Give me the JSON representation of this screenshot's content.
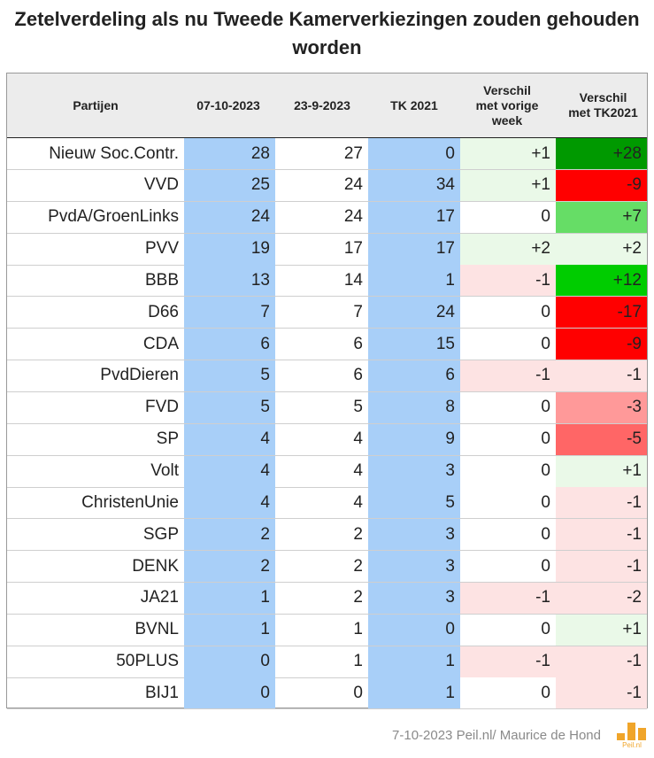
{
  "title": "Zetelverdeling als nu Tweede Kamerverkiezingen zouden gehouden worden",
  "footer": "7-10-2023 Peil.nl/ Maurice de Hond",
  "logo_text": "Peil.nl",
  "colors": {
    "blue_column": "#a8cff8",
    "header_bg": "#ececec",
    "pos_light": "#eaf9e8",
    "neg_light": "#fde3e3",
    "pos_medium": "#66dd66",
    "pos_strong": "#00cc00",
    "pos_dark": "#009900",
    "neg_medium": "#ff9999",
    "neg_mid": "#ff6666",
    "neg_strong": "#ff0000"
  },
  "chart_data": {
    "type": "table",
    "columns": [
      {
        "key": "party",
        "lines": [
          "Partijen"
        ]
      },
      {
        "key": "d0710",
        "lines": [
          "07-10-2023"
        ]
      },
      {
        "key": "d2309",
        "lines": [
          "23-9-2023"
        ]
      },
      {
        "key": "tk2021",
        "lines": [
          "TK 2021"
        ]
      },
      {
        "key": "diff_prev",
        "lines": [
          "Verschil",
          "met vorige",
          "week"
        ]
      },
      {
        "key": "diff_tk",
        "lines": [
          "Verschil",
          "met TK2021"
        ]
      }
    ],
    "rows": [
      {
        "party": "Nieuw Soc.Contr.",
        "d0710": "28",
        "d2309": "27",
        "tk2021": "0",
        "diff_prev": "+1",
        "diff_tk": "+28"
      },
      {
        "party": "VVD",
        "d0710": "25",
        "d2309": "24",
        "tk2021": "34",
        "diff_prev": "+1",
        "diff_tk": "-9"
      },
      {
        "party": "PvdA/GroenLinks",
        "d0710": "24",
        "d2309": "24",
        "tk2021": "17",
        "diff_prev": "0",
        "diff_tk": "+7"
      },
      {
        "party": "PVV",
        "d0710": "19",
        "d2309": "17",
        "tk2021": "17",
        "diff_prev": "+2",
        "diff_tk": "+2"
      },
      {
        "party": "BBB",
        "d0710": "13",
        "d2309": "14",
        "tk2021": "1",
        "diff_prev": "-1",
        "diff_tk": "+12"
      },
      {
        "party": "D66",
        "d0710": "7",
        "d2309": "7",
        "tk2021": "24",
        "diff_prev": "0",
        "diff_tk": "-17"
      },
      {
        "party": "CDA",
        "d0710": "6",
        "d2309": "6",
        "tk2021": "15",
        "diff_prev": "0",
        "diff_tk": "-9"
      },
      {
        "party": "PvdDieren",
        "d0710": "5",
        "d2309": "6",
        "tk2021": "6",
        "diff_prev": "-1",
        "diff_tk": "-1"
      },
      {
        "party": "FVD",
        "d0710": "5",
        "d2309": "5",
        "tk2021": "8",
        "diff_prev": "0",
        "diff_tk": "-3"
      },
      {
        "party": "SP",
        "d0710": "4",
        "d2309": "4",
        "tk2021": "9",
        "diff_prev": "0",
        "diff_tk": "-5"
      },
      {
        "party": "Volt",
        "d0710": "4",
        "d2309": "4",
        "tk2021": "3",
        "diff_prev": "0",
        "diff_tk": "+1"
      },
      {
        "party": "ChristenUnie",
        "d0710": "4",
        "d2309": "4",
        "tk2021": "5",
        "diff_prev": "0",
        "diff_tk": "-1"
      },
      {
        "party": "SGP",
        "d0710": "2",
        "d2309": "2",
        "tk2021": "3",
        "diff_prev": "0",
        "diff_tk": "-1"
      },
      {
        "party": "DENK",
        "d0710": "2",
        "d2309": "2",
        "tk2021": "3",
        "diff_prev": "0",
        "diff_tk": "-1"
      },
      {
        "party": "JA21",
        "d0710": "1",
        "d2309": "2",
        "tk2021": "3",
        "diff_prev": "-1",
        "diff_tk": "-2"
      },
      {
        "party": "BVNL",
        "d0710": "1",
        "d2309": "1",
        "tk2021": "0",
        "diff_prev": "0",
        "diff_tk": "+1"
      },
      {
        "party": "50PLUS",
        "d0710": "0",
        "d2309": "1",
        "tk2021": "1",
        "diff_prev": "-1",
        "diff_tk": "-1"
      },
      {
        "party": "BIJ1",
        "d0710": "0",
        "d2309": "0",
        "tk2021": "1",
        "diff_prev": "0",
        "diff_tk": "-1"
      }
    ]
  }
}
